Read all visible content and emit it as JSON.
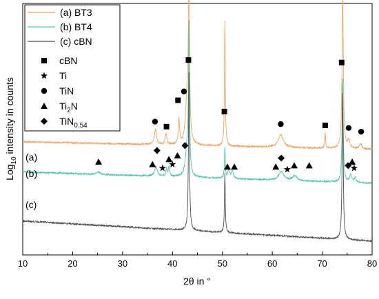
{
  "chart_data": {
    "type": "line",
    "xlabel": "2θ in °",
    "ylabel": "Log10 intensity in counts",
    "ylabel_parts": [
      "Log",
      "10",
      " intensity in counts"
    ],
    "xlim": [
      10,
      80
    ],
    "x_ticks": [
      10,
      20,
      30,
      40,
      50,
      60,
      70,
      80
    ],
    "x_tick_labels": [
      "10",
      "20",
      "30",
      "40",
      "50",
      "60",
      "70",
      "80"
    ],
    "y_log_scale": true,
    "y_tick_labels_shown": false,
    "grid": false,
    "legend_placement": "top-left",
    "series": [
      {
        "name": "(a) BT3",
        "tag": "(a)",
        "color": "#f5a05a",
        "baseline": 0.45,
        "tilt": 0.03,
        "peaks": [
          [
            36.6,
            0.06,
            0.25
          ],
          [
            38.7,
            0.04,
            0.2
          ],
          [
            41.3,
            0.1,
            0.15
          ],
          [
            42.9,
            0.17,
            0.35
          ],
          [
            43.3,
            0.72,
            0.13
          ],
          [
            50.5,
            0.5,
            0.1
          ],
          [
            61.7,
            0.05,
            0.6
          ],
          [
            70.6,
            0.06,
            0.1
          ],
          [
            74.1,
            0.62,
            0.15
          ],
          [
            75.3,
            0.03,
            0.3
          ],
          [
            77.7,
            0.02,
            0.3
          ]
        ]
      },
      {
        "name": "(b) BT4",
        "tag": "(b)",
        "color": "#45c9a8",
        "baseline": 0.33,
        "tilt": 0.045,
        "peaks": [
          [
            25.2,
            0.01,
            0.4
          ],
          [
            36.7,
            0.04,
            0.3
          ],
          [
            38.8,
            0.03,
            0.15
          ],
          [
            39.3,
            0.04,
            0.15
          ],
          [
            42.9,
            0.11,
            0.35
          ],
          [
            43.3,
            0.58,
            0.12
          ],
          [
            50.5,
            0.12,
            0.1
          ],
          [
            51.3,
            0.04,
            0.2
          ],
          [
            52.0,
            0.03,
            0.2
          ],
          [
            61.8,
            0.035,
            0.6
          ],
          [
            64.5,
            0.02,
            0.5
          ],
          [
            74.1,
            0.41,
            0.14
          ],
          [
            75.7,
            0.03,
            0.25
          ],
          [
            76.6,
            0.02,
            0.25
          ]
        ]
      },
      {
        "name": "(c) cBN",
        "tag": "(c)",
        "color": "#4d4d4d",
        "baseline": 0.135,
        "tilt": 0.08,
        "peaks": [
          [
            43.3,
            0.63,
            0.12
          ],
          [
            50.5,
            0.24,
            0.1
          ],
          [
            74.1,
            0.58,
            0.13
          ]
        ]
      }
    ],
    "phase_markers": [
      {
        "phase": "cBN",
        "symbol": "square",
        "points": [
          [
            43.2,
            0.775
          ],
          [
            50.4,
            0.57
          ],
          [
            41.1,
            0.615
          ],
          [
            38.8,
            0.51
          ],
          [
            70.6,
            0.515
          ],
          [
            73.9,
            0.765
          ]
        ]
      },
      {
        "phase": "Ti",
        "symbol": "star",
        "points": [
          [
            38.0,
            0.345
          ],
          [
            40.0,
            0.36
          ],
          [
            63.0,
            0.34
          ],
          [
            76.4,
            0.345
          ]
        ]
      },
      {
        "phase": "TiN",
        "symbol": "circle",
        "points": [
          [
            36.5,
            0.53
          ],
          [
            42.3,
            0.65
          ],
          [
            61.7,
            0.52
          ],
          [
            75.3,
            0.505
          ],
          [
            77.8,
            0.49
          ]
        ]
      },
      {
        "phase": "Ti2N",
        "symbol": "triangle",
        "points": [
          [
            25.2,
            0.37
          ],
          [
            36.0,
            0.36
          ],
          [
            39.3,
            0.38
          ],
          [
            41.0,
            0.395
          ],
          [
            51.0,
            0.35
          ],
          [
            52.4,
            0.35
          ],
          [
            60.7,
            0.35
          ],
          [
            64.4,
            0.355
          ],
          [
            67.4,
            0.355
          ],
          [
            76.0,
            0.37
          ]
        ]
      },
      {
        "phase": "TiN0.54",
        "symbol": "diamond",
        "points": [
          [
            36.9,
            0.415
          ],
          [
            42.5,
            0.435
          ],
          [
            61.8,
            0.385
          ],
          [
            75.2,
            0.355
          ]
        ]
      }
    ]
  },
  "legend": {
    "lines": [
      {
        "label": "(a) BT3",
        "color": "#f5a05a"
      },
      {
        "label": "(b) BT4",
        "color": "#45c9a8"
      },
      {
        "label": "(c) cBN",
        "color": "#4d4d4d"
      }
    ],
    "markers": [
      {
        "symbol": "square",
        "main": "cBN",
        "sub": ""
      },
      {
        "symbol": "star",
        "main": "Ti",
        "sub": ""
      },
      {
        "symbol": "circle",
        "main": "TiN",
        "sub": ""
      },
      {
        "symbol": "triangle",
        "main": "Ti",
        "sub": "2",
        "rest": "N"
      },
      {
        "symbol": "diamond",
        "main": "TiN",
        "sub": "0.54",
        "rest": ""
      }
    ]
  }
}
